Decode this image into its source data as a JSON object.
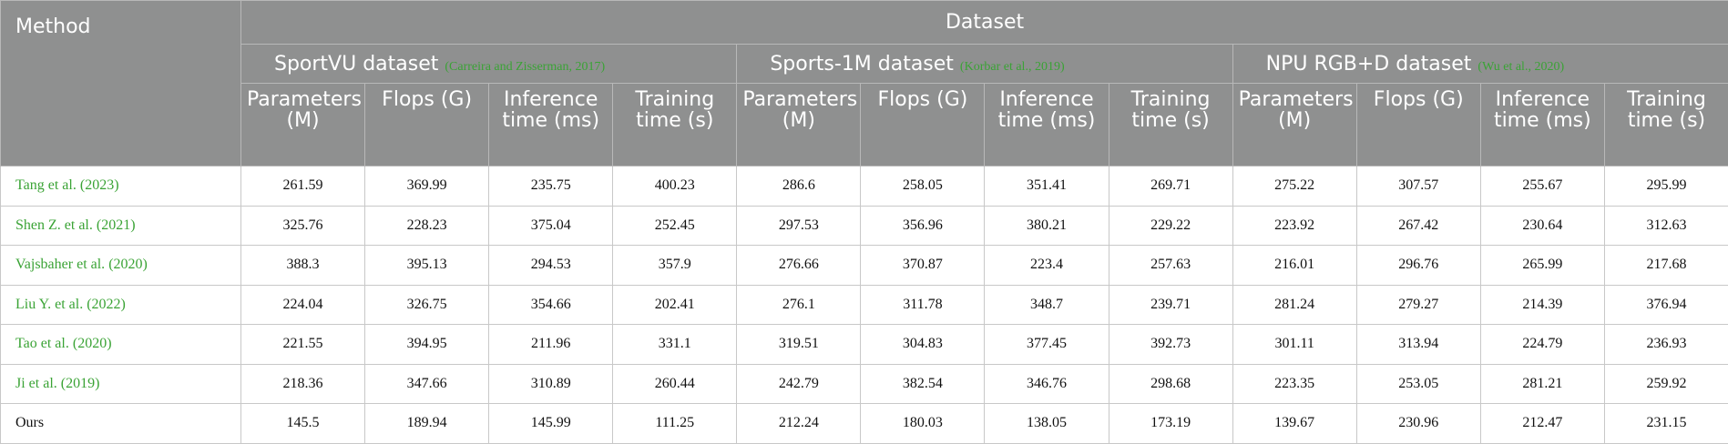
{
  "table": {
    "method_header": "Method",
    "group_header": "Dataset",
    "link_color": "#3aa335",
    "datasets": [
      {
        "name": "SportVU dataset",
        "citation": "(Carreira and Zisserman, 2017)"
      },
      {
        "name": "Sports-1M dataset",
        "citation": "(Korbar et al., 2019)"
      },
      {
        "name": "NPU RGB+D dataset",
        "citation": "(Wu et al., 2020)"
      }
    ],
    "metrics": [
      "Parameters (M)",
      "Flops (G)",
      "Inference time (ms)",
      "Training time (s)"
    ],
    "rows": [
      {
        "author": "Tang et al.",
        "year": "(2023)",
        "values": [
          261.59,
          369.99,
          235.75,
          400.23,
          286.6,
          258.05,
          351.41,
          269.71,
          275.22,
          307.57,
          255.67,
          295.99
        ]
      },
      {
        "author": "Shen Z. et al.",
        "year": "(2021)",
        "values": [
          325.76,
          228.23,
          375.04,
          252.45,
          297.53,
          356.96,
          380.21,
          229.22,
          223.92,
          267.42,
          230.64,
          312.63
        ]
      },
      {
        "author": "Vajsbaher et al.",
        "year": "(2020)",
        "values": [
          388.3,
          395.13,
          294.53,
          357.9,
          276.66,
          370.87,
          223.4,
          257.63,
          216.01,
          296.76,
          265.99,
          217.68
        ]
      },
      {
        "author": "Liu Y. et al.",
        "year": "(2022)",
        "values": [
          224.04,
          326.75,
          354.66,
          202.41,
          276.1,
          311.78,
          348.7,
          239.71,
          281.24,
          279.27,
          214.39,
          376.94
        ]
      },
      {
        "author": "Tao et al.",
        "year": "(2020)",
        "values": [
          221.55,
          394.95,
          211.96,
          331.1,
          319.51,
          304.83,
          377.45,
          392.73,
          301.11,
          313.94,
          224.79,
          236.93
        ]
      },
      {
        "author": "Ji et al.",
        "year": "(2019)",
        "values": [
          218.36,
          347.66,
          310.89,
          260.44,
          242.79,
          382.54,
          346.76,
          298.68,
          223.35,
          253.05,
          281.21,
          259.92
        ]
      },
      {
        "author": "Ours",
        "values": [
          145.5,
          189.94,
          145.99,
          111.25,
          212.24,
          180.03,
          138.05,
          173.19,
          139.67,
          230.96,
          212.47,
          231.15
        ]
      }
    ]
  }
}
